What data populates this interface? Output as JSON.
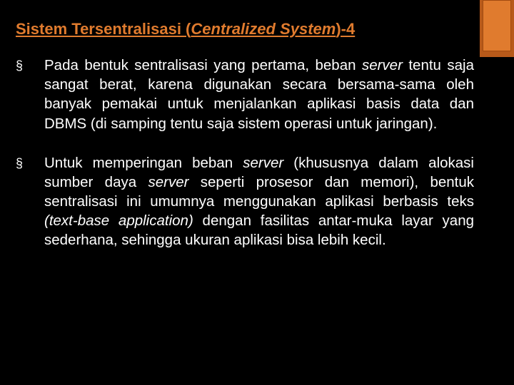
{
  "accent": {
    "outer_color": "#b85a1a",
    "inner_color": "#e07b2e",
    "border_color": "#a04a10"
  },
  "title": {
    "prefix": "Sistem Tersentralisasi (",
    "italic": "Centralized System",
    "suffix": ")-4",
    "color": "#e07b2e",
    "fontsize": 22
  },
  "bullets": [
    {
      "mark": "§",
      "html": "Pada bentuk sentralisasi yang pertama, beban <span class=\"italic\">server</span> tentu saja sangat berat, karena digunakan secara bersama-sama oleh banyak pemakai untuk menjalankan aplikasi basis data dan DBMS (di samping tentu saja sistem operasi untuk jaringan)."
    },
    {
      "mark": "§",
      "html": "Untuk memperingan beban <span class=\"italic\">server</span> (khususnya dalam alokasi sumber daya <span class=\"italic\">server</span> seperti prosesor dan memori), bentuk sentralisasi ini umumnya menggunakan aplikasi berbasis teks <span class=\"italic\">(text-base application)</span> dengan fasilitas antar-muka layar yang sederhana, sehingga ukuran aplikasi bisa lebih kecil."
    }
  ],
  "body": {
    "fontsize": 20.5,
    "text_color": "#ffffff",
    "background": "#000000"
  }
}
